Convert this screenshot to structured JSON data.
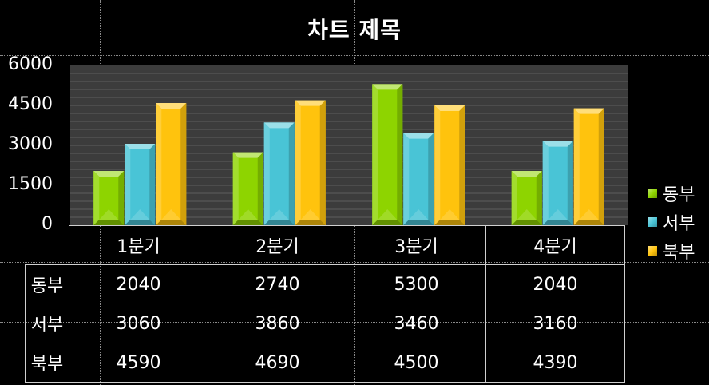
{
  "chart_data": {
    "type": "bar",
    "title": "차트 제목",
    "categories": [
      "1분기",
      "2분기",
      "3분기",
      "4분기"
    ],
    "series": [
      {
        "name": "동부",
        "values": [
          2040,
          2740,
          5300,
          2040
        ],
        "color": "#8ed400"
      },
      {
        "name": "서부",
        "values": [
          3060,
          3860,
          3460,
          3160
        ],
        "color": "#49c4d6"
      },
      {
        "name": "북부",
        "values": [
          4590,
          4690,
          4500,
          4390
        ],
        "color": "#ffc30d"
      }
    ],
    "ylim": [
      0,
      6000
    ],
    "yticks": [
      0,
      1500,
      3000,
      4500,
      6000
    ],
    "grid": true,
    "legend_position": "right",
    "data_table": true
  },
  "colors": {
    "background": "#000000",
    "plot_area": "#3c3c3c",
    "gridline": "#5e5e5e"
  }
}
